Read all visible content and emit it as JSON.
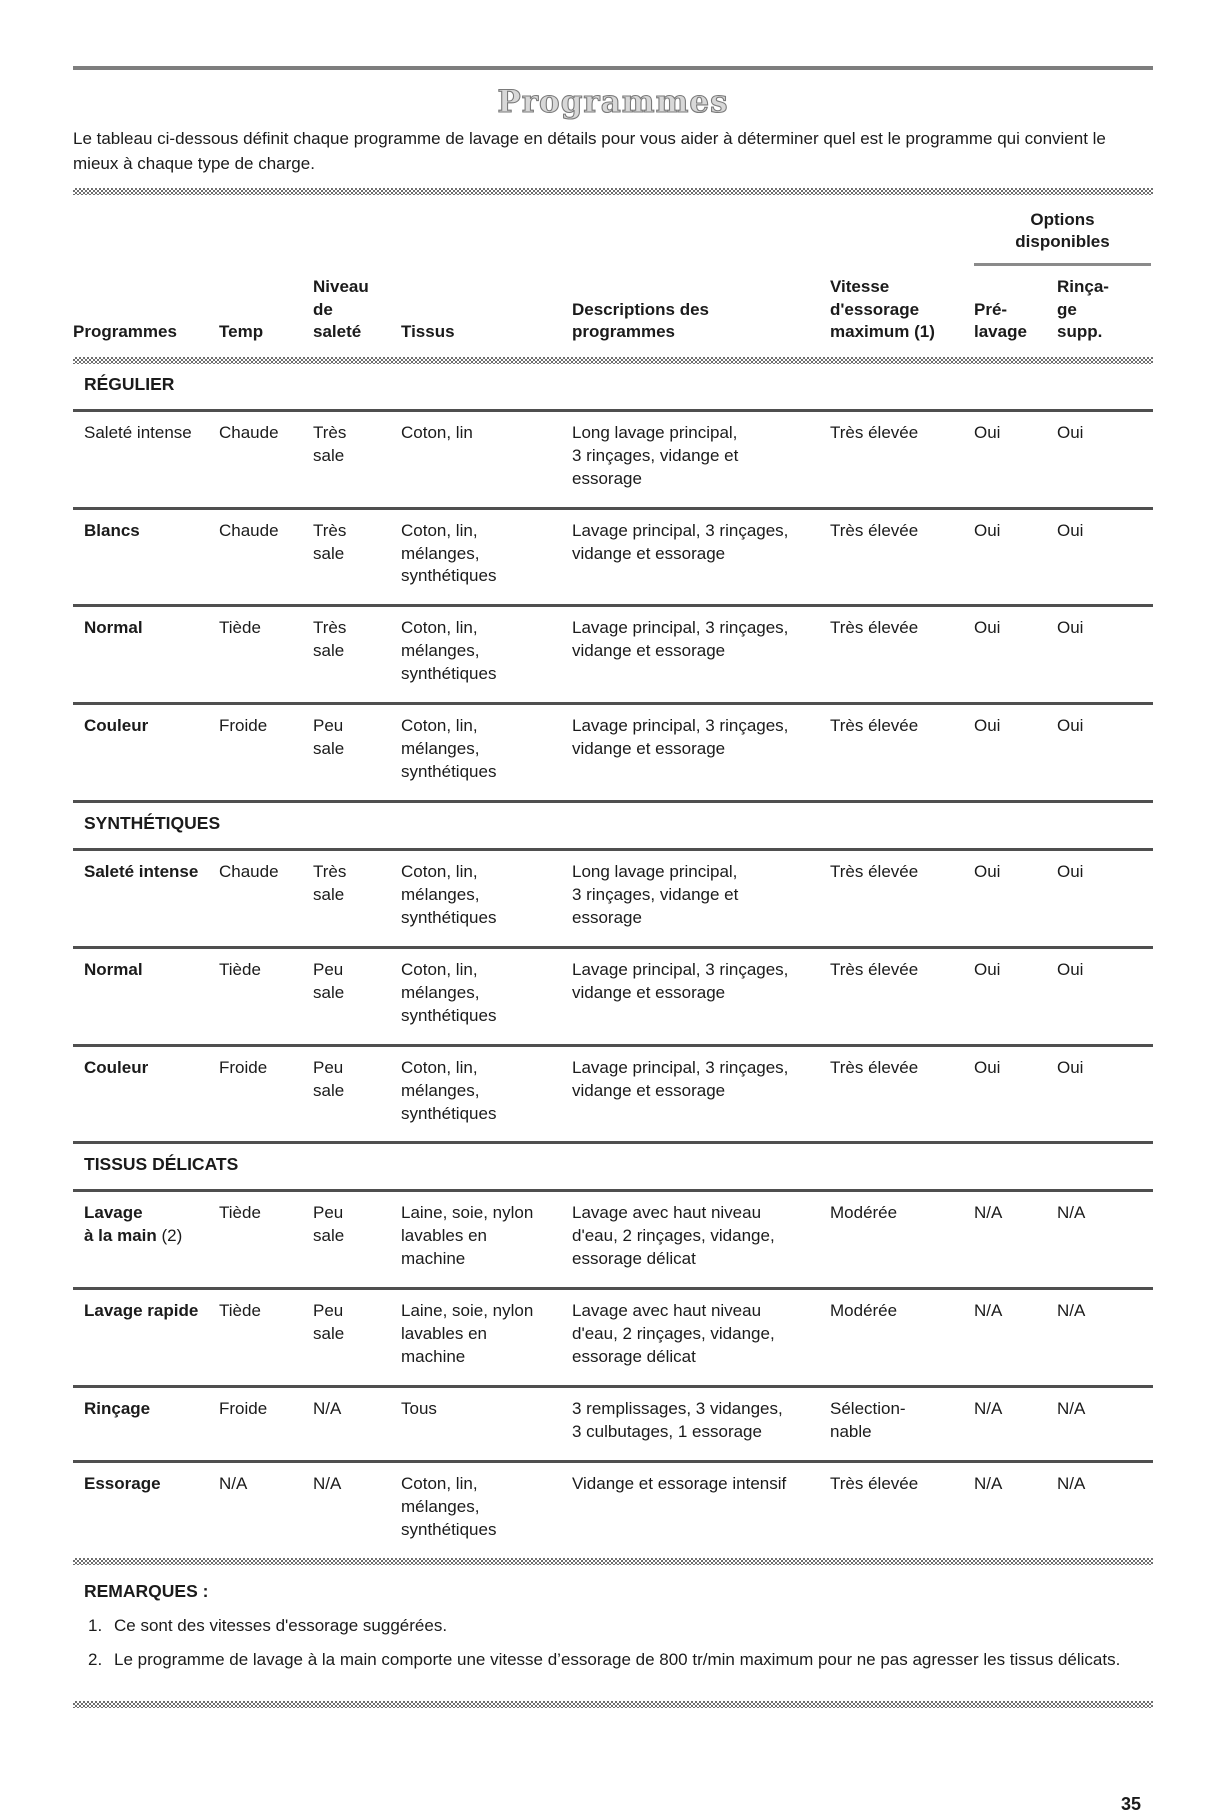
{
  "page": {
    "title": "Programmes",
    "intro": "Le tableau ci-dessous définit chaque programme de lavage en détails pour vous aider à déterminer quel est le programme qui convient le mieux à chaque type de charge.",
    "page_number": "35"
  },
  "table": {
    "options_group_label": "Options\ndisponibles",
    "columns": [
      "Programmes",
      "Temp",
      "Niveau\nde\nsaleté",
      "Tissus",
      "Descriptions des\nprogrammes",
      "Vitesse\nd'essorage\nmaximum (1)",
      "Pré-\nlavage",
      "Rinça-\nge\nsupp."
    ],
    "sections": [
      {
        "title": "RÉGULIER",
        "rows": [
          {
            "program": "Saleté intense",
            "temp": "Chaude",
            "soil": "Très\nsale",
            "fabrics": "Coton, lin",
            "description": "Long lavage principal,\n3 rinçages, vidange et\nessorage",
            "spin": "Très élevée",
            "prewash": "Oui",
            "extra_rinse": "Oui"
          },
          {
            "program": "Blancs",
            "temp": "Chaude",
            "soil": "Très\nsale",
            "fabrics": "Coton, lin,\nmélanges,\nsynthétiques",
            "description": "Lavage principal, 3 rinçages,\nvidange et essorage",
            "spin": "Très élevée",
            "prewash": "Oui",
            "extra_rinse": "Oui"
          },
          {
            "program": "Normal",
            "temp": "Tiède",
            "soil": "Très\nsale",
            "fabrics": "Coton, lin,\nmélanges,\nsynthétiques",
            "description": "Lavage principal, 3 rinçages,\nvidange et essorage",
            "spin": "Très élevée",
            "prewash": "Oui",
            "extra_rinse": "Oui"
          },
          {
            "program": "Couleur",
            "temp": "Froide",
            "soil": "Peu\nsale",
            "fabrics": "Coton, lin,\nmélanges,\nsynthétiques",
            "description": "Lavage principal, 3 rinçages,\nvidange et essorage",
            "spin": "Très élevée",
            "prewash": "Oui",
            "extra_rinse": "Oui"
          }
        ]
      },
      {
        "title": "SYNTHÉTIQUES",
        "rows": [
          {
            "program": "Saleté intense",
            "temp": "Chaude",
            "soil": "Très\nsale",
            "fabrics": "Coton, lin,\nmélanges,\nsynthétiques",
            "description": "Long lavage principal,\n3 rinçages, vidange et\nessorage",
            "spin": "Très élevée",
            "prewash": "Oui",
            "extra_rinse": "Oui"
          },
          {
            "program": "Normal",
            "temp": "Tiède",
            "soil": "Peu\nsale",
            "fabrics": "Coton, lin,\nmélanges,\nsynthétiques",
            "description": "Lavage principal, 3 rinçages,\nvidange et essorage",
            "spin": "Très élevée",
            "prewash": "Oui",
            "extra_rinse": "Oui"
          },
          {
            "program": "Couleur",
            "temp": "Froide",
            "soil": "Peu\nsale",
            "fabrics": "Coton, lin,\nmélanges,\nsynthétiques",
            "description": "Lavage principal, 3 rinçages,\nvidange et essorage",
            "spin": "Très élevée",
            "prewash": "Oui",
            "extra_rinse": "Oui"
          }
        ]
      },
      {
        "title": "TISSUS DÉLICATS",
        "rows": [
          {
            "program": "Lavage\nà la main",
            "program_suffix": " (2)",
            "temp": "Tiède",
            "soil": "Peu\nsale",
            "fabrics": "Laine, soie, nylon\nlavables en\nmachine",
            "description": "Lavage avec haut niveau\nd'eau, 2 rinçages, vidange,\nessorage délicat",
            "spin": "Modérée",
            "prewash": "N/A",
            "extra_rinse": "N/A"
          },
          {
            "program": "Lavage rapide",
            "temp": "Tiède",
            "soil": "Peu\nsale",
            "fabrics": "Laine, soie, nylon\nlavables en\nmachine",
            "description": "Lavage avec haut niveau\nd'eau, 2 rinçages, vidange,\nessorage délicat",
            "spin": "Modérée",
            "prewash": "N/A",
            "extra_rinse": "N/A"
          },
          {
            "program": "Rinçage",
            "temp": "Froide",
            "soil": "N/A",
            "fabrics": "Tous",
            "description": "3 remplissages, 3 vidanges,\n3 culbutages, 1 essorage",
            "spin": "Sélection-\nnable",
            "prewash": "N/A",
            "extra_rinse": "N/A"
          },
          {
            "program": "Essorage",
            "temp": "N/A",
            "soil": "N/A",
            "fabrics": "Coton, lin,\nmélanges,\nsynthétiques",
            "description": "Vidange et essorage intensif",
            "spin": "Très élevée",
            "prewash": "N/A",
            "extra_rinse": "N/A"
          }
        ]
      }
    ]
  },
  "remarks": {
    "heading": "REMARQUES :",
    "items": [
      {
        "num": "1.",
        "text": "Ce sont des vitesses d'essorage suggérées."
      },
      {
        "num": "2.",
        "text": "Le programme de lavage à la main comporte une vitesse d’essorage de 800 tr/min maximum pour ne pas agresser les tissus délicats."
      }
    ]
  }
}
